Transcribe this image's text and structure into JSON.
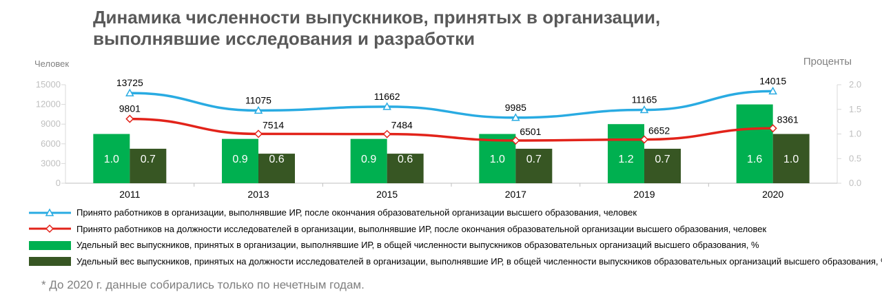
{
  "title": {
    "line1": "Динамика численности выпускников, принятых в организации,",
    "line2": "выполнявшие исследования и разработки"
  },
  "chart_data": {
    "type": "bar",
    "categories": [
      "2011",
      "2013",
      "2015",
      "2017",
      "2019",
      "2020"
    ],
    "left_axis": {
      "label": "Человек",
      "ticks": [
        "15000",
        "12000",
        "9000",
        "6000",
        "3000",
        "0"
      ],
      "ylim": [
        0,
        15000
      ]
    },
    "right_axis": {
      "label": "Проценты",
      "ticks": [
        "2.0",
        "1.5",
        "1.0",
        "0.5",
        "0.0"
      ],
      "ylim": [
        0,
        2.0
      ]
    },
    "series": [
      {
        "name": "Принято работников в организации, выполнявшие ИР, после окончания образовательной организации высшего образования, человек",
        "type": "line",
        "axis": "left",
        "color": "#29ABE2",
        "marker": "triangle",
        "values": [
          13725,
          11075,
          11662,
          9985,
          11165,
          14015
        ],
        "labels": [
          "13725",
          "11075",
          "11662",
          "9985",
          "11165",
          "14015"
        ]
      },
      {
        "name": "Принято работников на должности исследователей в организации, выполнявшие ИР, после окончания образовательной организации высшего образования, человек",
        "type": "line",
        "axis": "left",
        "color": "#E2231A",
        "marker": "diamond",
        "values": [
          9801,
          7514,
          7484,
          6501,
          6652,
          8361
        ],
        "labels": [
          "9801",
          "7514",
          "7484",
          "6501",
          "6652",
          "8361"
        ]
      },
      {
        "name": "Удельный вес выпускников, принятых в организации, выполнявшие ИР, в общей численности выпускников образовательных организаций высшего образования, %",
        "type": "bar",
        "axis": "right",
        "color": "#00B050",
        "values": [
          1.0,
          0.9,
          0.9,
          1.0,
          1.2,
          1.6
        ],
        "labels": [
          "1.0",
          "0.9",
          "0.9",
          "1.0",
          "1.2",
          "1.6"
        ]
      },
      {
        "name": "Удельный вес выпускников, принятых на должности исследователей в организации, выполнявшие ИР, в общей численности выпускников образовательных организаций высшего образования, %",
        "type": "bar",
        "axis": "right",
        "color": "#375623",
        "values": [
          0.7,
          0.6,
          0.6,
          0.7,
          0.7,
          1.0
        ],
        "labels": [
          "0.7",
          "0.6",
          "0.6",
          "0.7",
          "0.7",
          "1.0"
        ]
      }
    ],
    "legend_position": "bottom",
    "grid": false
  },
  "footnote": "* До 2020 г. данные собирались только по нечетным годам."
}
